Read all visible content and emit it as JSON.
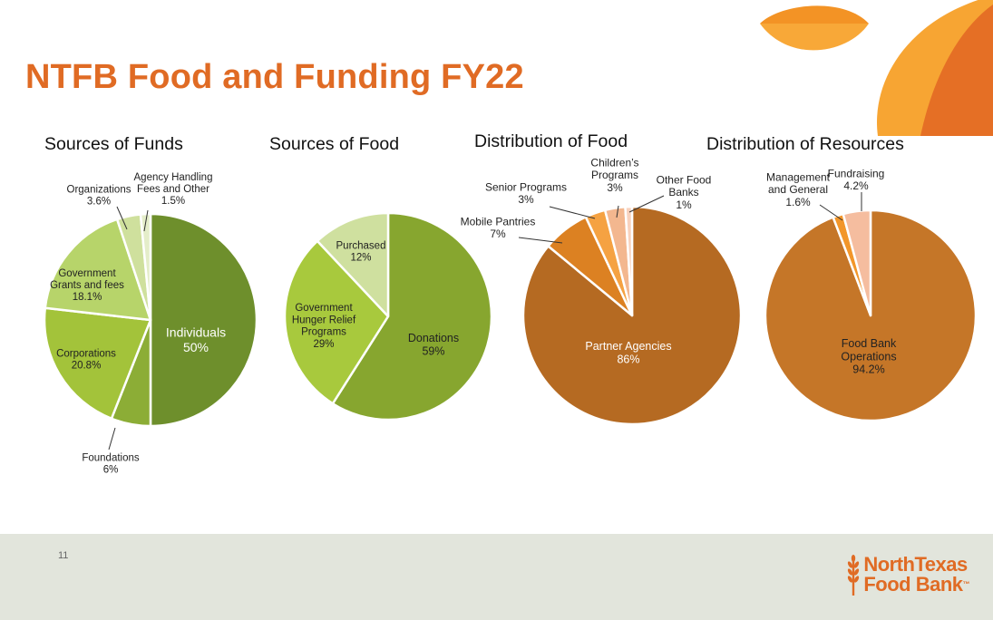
{
  "title": "NTFB Food and Funding FY22",
  "page_number": "11",
  "logo": {
    "line1": "NorthTexas",
    "line2": "Food Bank",
    "mark": "™",
    "icon": "wheat-icon"
  },
  "colors": {
    "brand_orange": "#e06b24"
  },
  "chart_data": [
    {
      "type": "pie",
      "title": "Sources of Funds",
      "slices": [
        {
          "label": "Individuals",
          "value": 50,
          "value_text": "50%",
          "color": "#6e8f2c"
        },
        {
          "label": "Foundations",
          "value": 6,
          "value_text": "6%",
          "color": "#8cad36"
        },
        {
          "label": "Corporations",
          "value": 20.8,
          "value_text": "20.8%",
          "color": "#a3c33a"
        },
        {
          "label": "Government Grants and fees",
          "value": 18.1,
          "value_text": "18.1%",
          "color": "#b7d46a"
        },
        {
          "label": "Organizations",
          "value": 3.6,
          "value_text": "3.6%",
          "color": "#cfe09d"
        },
        {
          "label": "Agency Handling Fees and Other",
          "value": 1.5,
          "value_text": "1.5%",
          "color": "#e4edc9"
        }
      ]
    },
    {
      "type": "pie",
      "title": "Sources of Food",
      "slices": [
        {
          "label": "Donations",
          "value": 59,
          "value_text": "59%",
          "color": "#87a62f"
        },
        {
          "label": "Government Hunger Relief Programs",
          "value": 29,
          "value_text": "29%",
          "color": "#a8c93d"
        },
        {
          "label": "Purchased",
          "value": 12,
          "value_text": "12%",
          "color": "#cfe09f"
        }
      ]
    },
    {
      "type": "pie",
      "title": "Distribution of Food",
      "slices": [
        {
          "label": "Partner Agencies",
          "value": 86,
          "value_text": "86%",
          "color": "#b56a22"
        },
        {
          "label": "Mobile Pantries",
          "value": 7,
          "value_text": "7%",
          "color": "#dc8122"
        },
        {
          "label": "Senior Programs",
          "value": 3,
          "value_text": "3%",
          "color": "#f5a242"
        },
        {
          "label": "Children's Programs",
          "value": 3,
          "value_text": "3%",
          "color": "#f3b78f"
        },
        {
          "label": "Other Food Banks",
          "value": 1,
          "value_text": "1%",
          "color": "#f8d2be"
        }
      ]
    },
    {
      "type": "pie",
      "title": "Distribution of Resources",
      "slices": [
        {
          "label": "Food Bank Operations",
          "value": 94.2,
          "value_text": "94.2%",
          "color": "#c57628"
        },
        {
          "label": "Management and General",
          "value": 1.6,
          "value_text": "1.6%",
          "color": "#f2962a"
        },
        {
          "label": "Fundraising",
          "value": 4.2,
          "value_text": "4.2%",
          "color": "#f5bd9f"
        }
      ]
    }
  ]
}
